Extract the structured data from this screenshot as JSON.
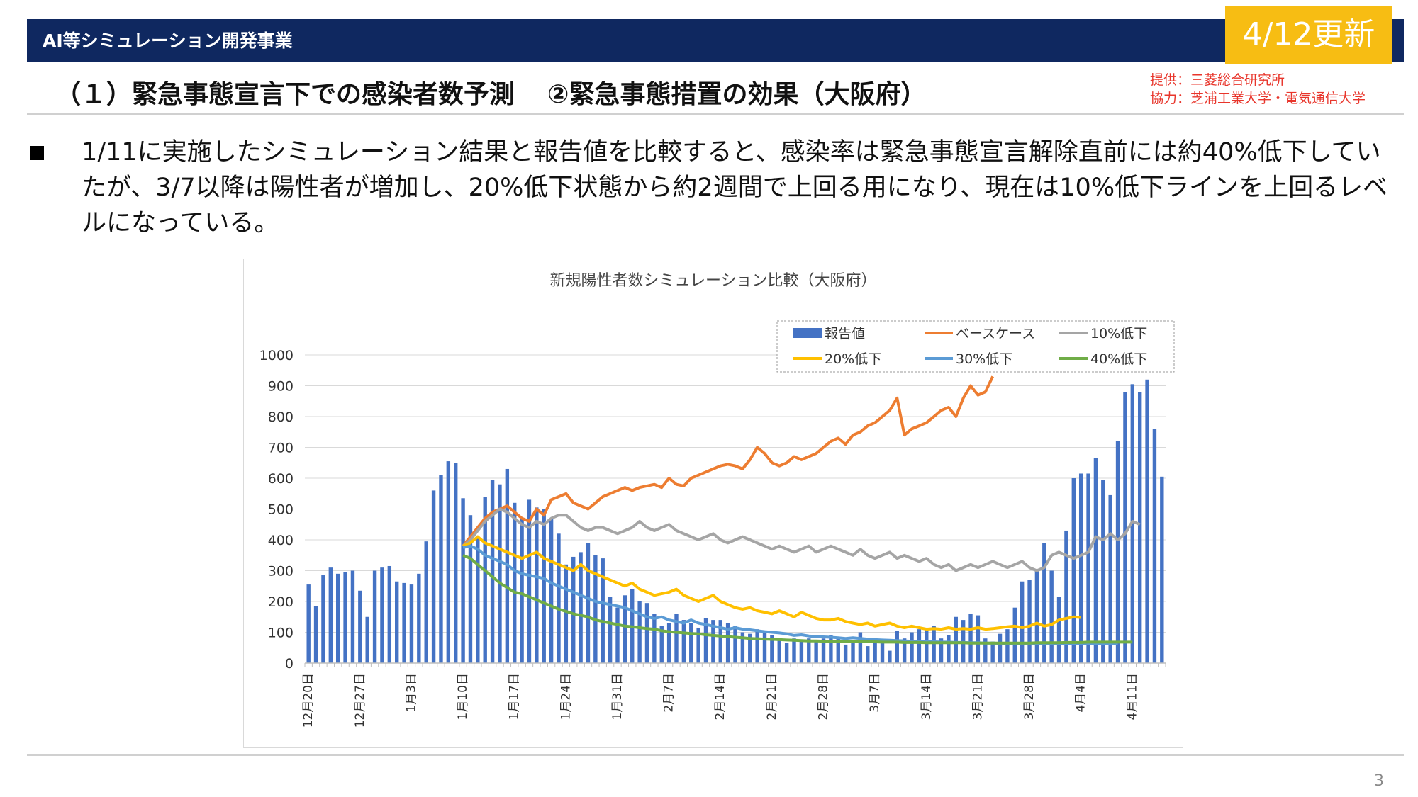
{
  "header": {
    "section_title": "AI等シミュレーション開発事業",
    "update_badge": "4/12更新",
    "heading_part1": "（１）緊急事態宣言下での感染者数予測",
    "heading_part2": "②緊急事態措置の効果（大阪府）",
    "credit_line1": "提供：三菱総合研究所",
    "credit_line2": "協力：芝浦工業大学・電気通信大学"
  },
  "body": {
    "bullet_text": "1/11に実施したシミュレーション結果と報告値を比較すると、感染率は緊急事態宣言解除直前には約40%低下していたが、3/7以降は陽性者が増加し、20%低下状態から約2週間で上回る用になり、現在は10%低下ラインを上回るレベルになっている。"
  },
  "page_number": "3",
  "colors": {
    "header_bar": "#0f2860",
    "badge": "#f7bd13",
    "credit": "#e8352b",
    "bar": "#4472c4",
    "base": "#ed7d31",
    "r10": "#a5a5a5",
    "r20": "#ffc000",
    "r30": "#5b9bd5",
    "r40": "#70ad47"
  },
  "chart_data": {
    "type": "bar+line",
    "title": "新規陽性者数シミュレーション比較（大阪府）",
    "ylim": [
      0,
      1000
    ],
    "yticks": [
      0,
      100,
      200,
      300,
      400,
      500,
      600,
      700,
      800,
      900,
      1000
    ],
    "grid": true,
    "legend_position": "top-right",
    "x_start": "12月20日",
    "x_end": "4月12日",
    "x_tick_labels": [
      "12月20日",
      "12月27日",
      "1月3日",
      "1月10日",
      "1月17日",
      "1月24日",
      "1月31日",
      "2月7日",
      "2月14日",
      "2月21日",
      "2月28日",
      "3月7日",
      "3月14日",
      "3月21日",
      "3月28日",
      "4月4日",
      "4月11日"
    ],
    "legend": [
      "報告値",
      "ベースケース",
      "10%低下",
      "20%低下",
      "30%低下",
      "40%低下"
    ],
    "series": [
      {
        "name": "報告値",
        "type": "bar",
        "color": "#4472c4",
        "values": [
          255,
          185,
          285,
          310,
          290,
          295,
          300,
          235,
          150,
          300,
          310,
          315,
          265,
          260,
          255,
          290,
          395,
          560,
          610,
          655,
          650,
          535,
          480,
          410,
          540,
          595,
          580,
          630,
          520,
          470,
          530,
          505,
          500,
          470,
          420,
          320,
          345,
          360,
          390,
          350,
          340,
          215,
          180,
          220,
          240,
          200,
          195,
          160,
          120,
          130,
          160,
          140,
          130,
          115,
          145,
          140,
          140,
          130,
          120,
          100,
          95,
          110,
          100,
          90,
          75,
          65,
          80,
          75,
          80,
          70,
          80,
          90,
          80,
          60,
          70,
          100,
          55,
          75,
          65,
          40,
          105,
          80,
          100,
          110,
          115,
          120,
          80,
          90,
          150,
          140,
          160,
          155,
          80,
          70,
          95,
          110,
          180,
          265,
          270,
          300,
          390,
          300,
          215,
          430,
          600,
          615,
          615,
          665,
          595,
          545,
          720,
          880,
          905,
          880,
          920,
          760,
          605
        ]
      },
      {
        "name": "ベースケース",
        "type": "line",
        "color": "#ed7d31",
        "start_index": 21,
        "values": [
          380,
          410,
          440,
          470,
          490,
          500,
          510,
          490,
          470,
          460,
          500,
          480,
          530,
          540,
          550,
          520,
          510,
          500,
          520,
          540,
          550,
          560,
          570,
          560,
          570,
          575,
          580,
          570,
          600,
          580,
          575,
          600,
          610,
          620,
          630,
          640,
          645,
          640,
          630,
          660,
          700,
          680,
          650,
          640,
          650,
          670,
          660,
          670,
          680,
          700,
          720,
          730,
          710,
          740,
          750,
          770,
          780,
          800,
          820,
          860,
          740,
          760,
          770,
          780,
          800,
          820,
          830,
          800,
          860,
          900,
          870,
          880,
          930
        ]
      },
      {
        "name": "10%低下",
        "type": "line",
        "color": "#a5a5a5",
        "start_index": 21,
        "values": [
          380,
          400,
          430,
          460,
          480,
          500,
          490,
          470,
          450,
          440,
          460,
          450,
          470,
          480,
          480,
          460,
          440,
          430,
          440,
          440,
          430,
          420,
          430,
          440,
          460,
          440,
          430,
          440,
          450,
          430,
          420,
          410,
          400,
          410,
          420,
          400,
          390,
          400,
          410,
          400,
          390,
          380,
          370,
          380,
          370,
          360,
          370,
          380,
          360,
          370,
          380,
          370,
          360,
          350,
          370,
          350,
          340,
          350,
          360,
          340,
          350,
          340,
          330,
          340,
          320,
          310,
          320,
          300,
          310,
          320,
          310,
          320,
          330,
          320,
          310,
          320,
          330,
          310,
          300,
          310,
          350,
          360,
          350,
          340,
          350,
          360,
          410,
          400,
          420,
          400,
          420,
          460,
          450
        ]
      },
      {
        "name": "20%低下",
        "type": "line",
        "color": "#ffc000",
        "start_index": 21,
        "values": [
          380,
          390,
          410,
          390,
          380,
          370,
          360,
          350,
          340,
          350,
          360,
          340,
          330,
          320,
          310,
          300,
          320,
          300,
          290,
          280,
          270,
          260,
          250,
          260,
          240,
          230,
          220,
          225,
          230,
          240,
          220,
          210,
          200,
          210,
          220,
          200,
          190,
          180,
          175,
          180,
          170,
          165,
          160,
          170,
          160,
          150,
          165,
          155,
          145,
          140,
          140,
          145,
          135,
          130,
          125,
          130,
          120,
          125,
          130,
          120,
          115,
          120,
          115,
          110,
          112,
          110,
          115,
          110,
          112,
          110,
          115,
          110,
          112,
          115,
          118,
          120,
          115,
          120,
          130,
          120,
          125,
          140,
          145,
          150,
          148
        ]
      },
      {
        "name": "30%低下",
        "type": "line",
        "color": "#5b9bd5",
        "start_index": 21,
        "values": [
          375,
          380,
          370,
          350,
          340,
          330,
          320,
          300,
          290,
          285,
          280,
          275,
          260,
          250,
          240,
          230,
          220,
          210,
          200,
          195,
          190,
          185,
          180,
          170,
          160,
          150,
          145,
          150,
          140,
          135,
          130,
          140,
          130,
          125,
          120,
          115,
          110,
          115,
          110,
          108,
          105,
          102,
          100,
          98,
          95,
          90,
          92,
          88,
          86,
          85,
          84,
          82,
          80,
          82,
          80,
          78,
          76,
          75,
          74,
          73,
          72,
          71,
          70,
          70,
          69,
          68,
          68,
          67,
          67,
          66,
          66,
          65,
          65,
          64,
          64,
          64,
          63,
          63,
          63,
          62,
          62,
          62,
          62,
          62,
          62,
          62,
          62,
          62,
          62,
          62
        ]
      },
      {
        "name": "40%低下",
        "type": "line",
        "color": "#70ad47",
        "start_index": 21,
        "values": [
          350,
          340,
          320,
          300,
          280,
          260,
          245,
          230,
          225,
          215,
          205,
          195,
          185,
          175,
          168,
          160,
          155,
          150,
          140,
          135,
          130,
          125,
          120,
          118,
          115,
          112,
          110,
          105,
          102,
          100,
          98,
          96,
          95,
          92,
          90,
          88,
          86,
          84,
          82,
          80,
          79,
          78,
          77,
          76,
          75,
          74,
          73,
          72,
          72,
          71,
          70,
          70,
          70,
          70,
          70,
          69,
          69,
          68,
          68,
          68,
          67,
          67,
          67,
          66,
          66,
          66,
          66,
          66,
          66,
          65,
          65,
          65,
          65,
          65,
          65,
          65,
          65,
          65,
          66,
          66,
          66,
          66,
          67,
          67,
          67,
          68,
          68,
          68,
          68,
          68,
          68,
          68
        ]
      }
    ]
  }
}
